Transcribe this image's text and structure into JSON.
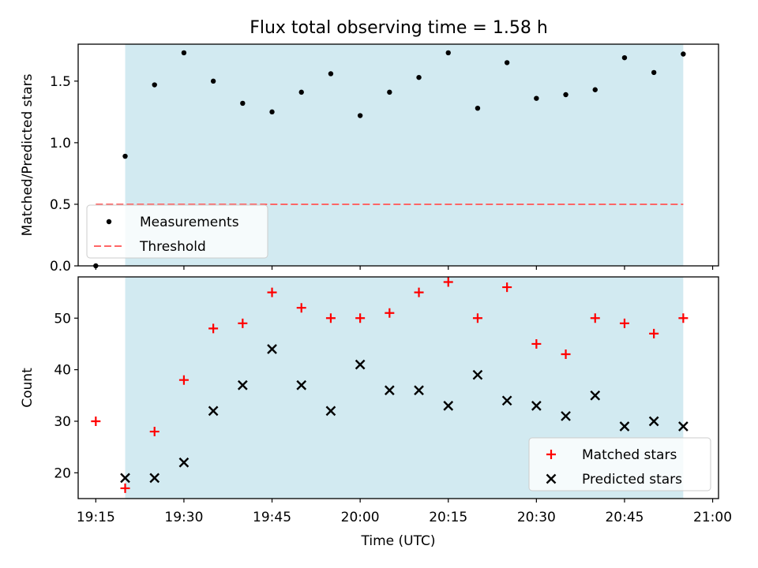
{
  "title": "Flux total observing time = 1.58 h",
  "chart_data": [
    {
      "type": "scatter",
      "ylabel": "Matched/Predicted stars",
      "ylim": [
        0,
        1.8
      ],
      "yticks": [
        "0.0",
        "0.5",
        "1.0",
        "1.5"
      ],
      "ytick_values": [
        0,
        0.5,
        1.0,
        1.5
      ],
      "xlim": [
        "19:12",
        "21:01"
      ],
      "shaded_interval": [
        "19:20",
        "20:55"
      ],
      "shade_color": "#add8e6",
      "threshold": 0.5,
      "legend_location": "lower-left",
      "series": [
        {
          "name": "Measurements",
          "marker": "dot",
          "color": "#000000",
          "points": [
            [
              "19:15",
              0.0
            ],
            [
              "19:20",
              0.89
            ],
            [
              "19:25",
              1.47
            ],
            [
              "19:30",
              1.73
            ],
            [
              "19:35",
              1.5
            ],
            [
              "19:40",
              1.32
            ],
            [
              "19:45",
              1.25
            ],
            [
              "19:50",
              1.41
            ],
            [
              "19:55",
              1.56
            ],
            [
              "20:00",
              1.22
            ],
            [
              "20:05",
              1.41
            ],
            [
              "20:10",
              1.53
            ],
            [
              "20:15",
              1.73
            ],
            [
              "20:20",
              1.28
            ],
            [
              "20:25",
              1.65
            ],
            [
              "20:30",
              1.36
            ],
            [
              "20:35",
              1.39
            ],
            [
              "20:40",
              1.43
            ],
            [
              "20:45",
              1.69
            ],
            [
              "20:50",
              1.57
            ],
            [
              "20:55",
              1.72
            ]
          ]
        },
        {
          "name": "Threshold",
          "marker": "dashed-line",
          "color": "#ff6666",
          "points": [
            [
              "19:15",
              0.5
            ],
            [
              "20:55",
              0.5
            ]
          ]
        }
      ]
    },
    {
      "type": "scatter",
      "ylabel": "Count",
      "xlabel": "Time (UTC)",
      "ylim": [
        15,
        58
      ],
      "yticks": [
        "20",
        "30",
        "40",
        "50"
      ],
      "ytick_values": [
        20,
        30,
        40,
        50
      ],
      "xlim": [
        "19:12",
        "21:01"
      ],
      "xticks": [
        "19:15",
        "19:30",
        "19:45",
        "20:00",
        "20:15",
        "20:30",
        "20:45",
        "21:00"
      ],
      "shaded_interval": [
        "19:20",
        "20:55"
      ],
      "shade_color": "#add8e6",
      "legend_location": "lower-right",
      "series": [
        {
          "name": "Matched stars",
          "marker": "plus",
          "color": "#ff0000",
          "points": [
            [
              "19:15",
              30
            ],
            [
              "19:20",
              17
            ],
            [
              "19:25",
              28
            ],
            [
              "19:30",
              38
            ],
            [
              "19:35",
              48
            ],
            [
              "19:40",
              49
            ],
            [
              "19:45",
              55
            ],
            [
              "19:50",
              52
            ],
            [
              "19:55",
              50
            ],
            [
              "20:00",
              50
            ],
            [
              "20:05",
              51
            ],
            [
              "20:10",
              55
            ],
            [
              "20:15",
              57
            ],
            [
              "20:20",
              50
            ],
            [
              "20:25",
              56
            ],
            [
              "20:30",
              45
            ],
            [
              "20:35",
              43
            ],
            [
              "20:40",
              50
            ],
            [
              "20:45",
              49
            ],
            [
              "20:50",
              47
            ],
            [
              "20:55",
              50
            ]
          ]
        },
        {
          "name": "Predicted stars",
          "marker": "x",
          "color": "#000000",
          "points": [
            [
              "19:20",
              19
            ],
            [
              "19:25",
              19
            ],
            [
              "19:30",
              22
            ],
            [
              "19:35",
              32
            ],
            [
              "19:40",
              37
            ],
            [
              "19:45",
              44
            ],
            [
              "19:50",
              37
            ],
            [
              "19:55",
              32
            ],
            [
              "20:00",
              41
            ],
            [
              "20:05",
              36
            ],
            [
              "20:10",
              36
            ],
            [
              "20:15",
              33
            ],
            [
              "20:20",
              39
            ],
            [
              "20:25",
              34
            ],
            [
              "20:30",
              33
            ],
            [
              "20:35",
              31
            ],
            [
              "20:40",
              35
            ],
            [
              "20:45",
              29
            ],
            [
              "20:50",
              30
            ],
            [
              "20:55",
              29
            ]
          ]
        }
      ]
    }
  ]
}
